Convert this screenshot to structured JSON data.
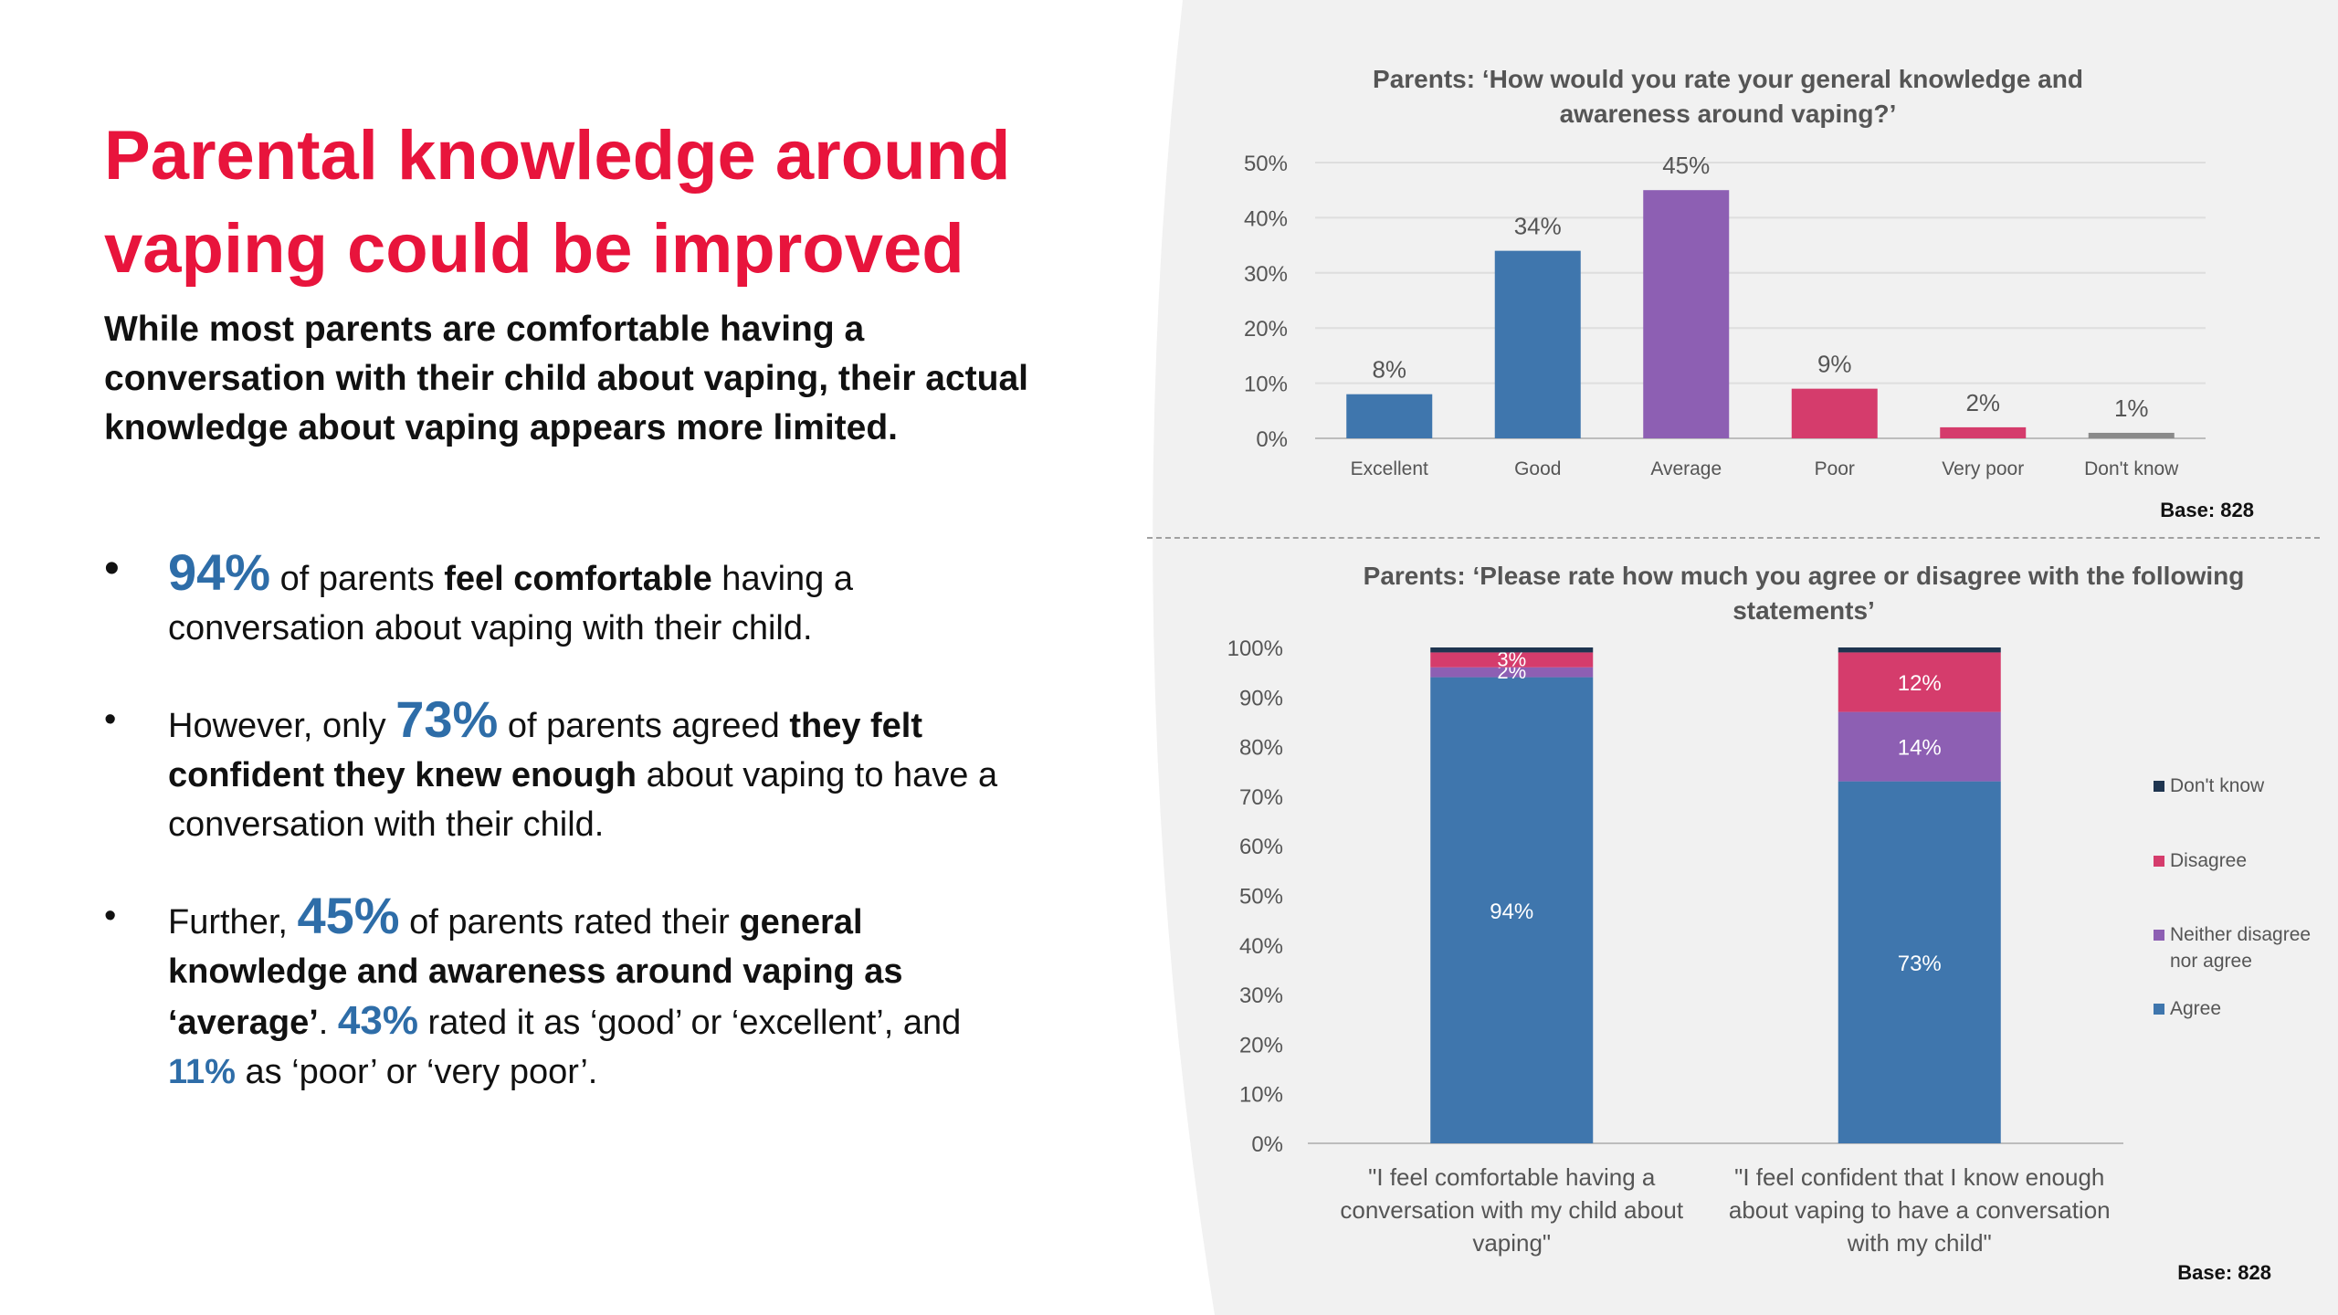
{
  "slide": {
    "title_line1": "Parental knowledge around",
    "title_line2": "vaping could be improved",
    "subtitle": "While most parents are comfortable having a conversation with their child about vaping, their actual knowledge about vaping appears more limited."
  },
  "bullets": [
    {
      "figure": "94%",
      "t1": " of parents ",
      "bold1": "feel comfortable",
      "t2": " having a conversation about vaping with their child."
    },
    {
      "lead": "However, only ",
      "figure": "73%",
      "t1": " of parents agreed ",
      "bold1": "they felt confident they knew enough",
      "t2": " about vaping to have a conversation with their child."
    },
    {
      "lead": "Further, ",
      "figure": "45%",
      "t1": " of parents rated their ",
      "bold1": "general knowledge and awareness around vaping as ‘average’",
      "t2": ". ",
      "figure2": "43%",
      "t3": " rated it as ‘good’ or ‘excellent’, and ",
      "figure3": "11%",
      "t4": " as ‘poor’ or ‘very poor’."
    }
  ],
  "chart_data": [
    {
      "type": "bar",
      "title": "Parents: ‘How would you rate your general knowledge and awareness around vaping?’",
      "title_lines": [
        "Parents: ‘How would you rate your general knowledge and",
        "awareness around vaping?’"
      ],
      "categories": [
        "Excellent",
        "Good",
        "Average",
        "Poor",
        "Very poor",
        "Don't know"
      ],
      "values": [
        8,
        34,
        45,
        9,
        2,
        1
      ],
      "value_labels": [
        "8%",
        "34%",
        "45%",
        "9%",
        "2%",
        "1%"
      ],
      "colors": [
        "#3f76ad",
        "#3f76ad",
        "#8d5fb3",
        "#d53c6c",
        "#d53c6c",
        "#8a8a8a"
      ],
      "yticks": [
        "0%",
        "10%",
        "20%",
        "30%",
        "40%",
        "50%"
      ],
      "ylim": [
        0,
        50
      ],
      "grid": true,
      "base_note": "Base: 828"
    },
    {
      "type": "bar",
      "stacked": true,
      "title": "Parents: ‘Please rate how much you agree or disagree with the following statements’",
      "title_lines": [
        "Parents: ‘Please rate how much you agree or disagree with the following",
        "statements’"
      ],
      "categories": [
        "\"I feel comfortable having a conversation with my child about vaping\"",
        "\"I feel confident that I know enough about vaping to have a conversation with my child\""
      ],
      "category_lines": [
        [
          "\"I feel comfortable having a",
          "conversation with my child about",
          "vaping\""
        ],
        [
          "\"I feel confident that I know enough",
          "about vaping to have a conversation",
          "with my child\""
        ]
      ],
      "series": [
        {
          "name": "Agree",
          "values": [
            94,
            73
          ],
          "labels": [
            "94%",
            "73%"
          ],
          "color": "#3f76ad"
        },
        {
          "name": "Neither disagree nor agree",
          "values": [
            2,
            14
          ],
          "labels": [
            "2%",
            "14%"
          ],
          "color": "#8d5fb3"
        },
        {
          "name": "Disagree",
          "values": [
            3,
            12
          ],
          "labels": [
            "3%",
            "12%"
          ],
          "color": "#d53c6c"
        },
        {
          "name": "Don't know",
          "values": [
            1,
            1
          ],
          "labels": [
            "",
            ""
          ],
          "color": "#1f3550"
        }
      ],
      "legend_entries": [
        "Don't know",
        "Disagree",
        "Neither disagree",
        "nor agree",
        "Agree"
      ],
      "yticks": [
        "0%",
        "10%",
        "20%",
        "30%",
        "40%",
        "50%",
        "60%",
        "70%",
        "80%",
        "90%",
        "100%"
      ],
      "ylim": [
        0,
        100
      ],
      "legend": "right",
      "base_note": "Base: 828"
    }
  ]
}
